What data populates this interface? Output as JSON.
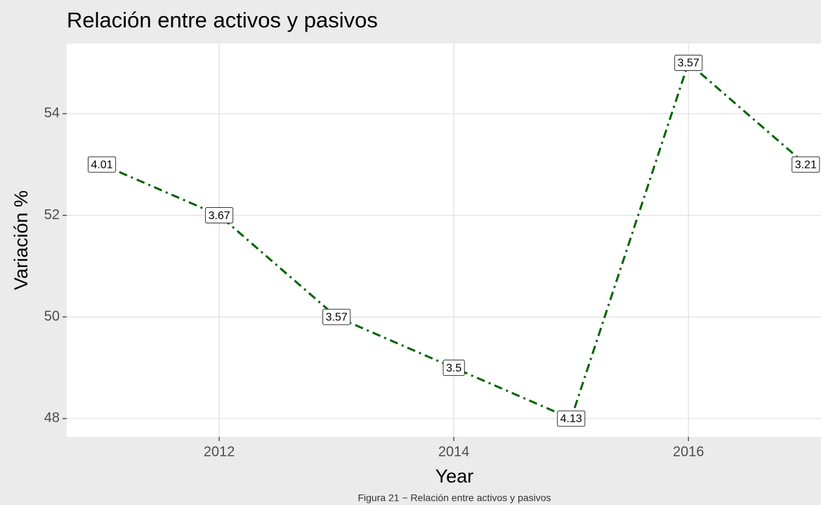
{
  "chart_data": {
    "type": "line",
    "title": "Relación entre activos y pasivos",
    "x_label": "Year",
    "y_label": "Variación %",
    "caption": "Figura 21 − Relación entre activos y pasivos",
    "x": [
      2011,
      2012,
      2013,
      2014,
      2015,
      2016,
      2017
    ],
    "series": [
      {
        "color": "#006400",
        "values": [
          53,
          52,
          50,
          49,
          48,
          55,
          53
        ],
        "point_labels": [
          "4.01",
          "3.67",
          "3.57",
          "3.5",
          "4.13",
          "3.57",
          "3.21"
        ]
      }
    ],
    "xlim": [
      2010.7,
      2017.13
    ],
    "xticks": [
      2012,
      2014,
      2016
    ],
    "ylim": [
      47.64,
      55.38
    ],
    "yticks": [
      48,
      50,
      52,
      54
    ],
    "grid": true
  }
}
